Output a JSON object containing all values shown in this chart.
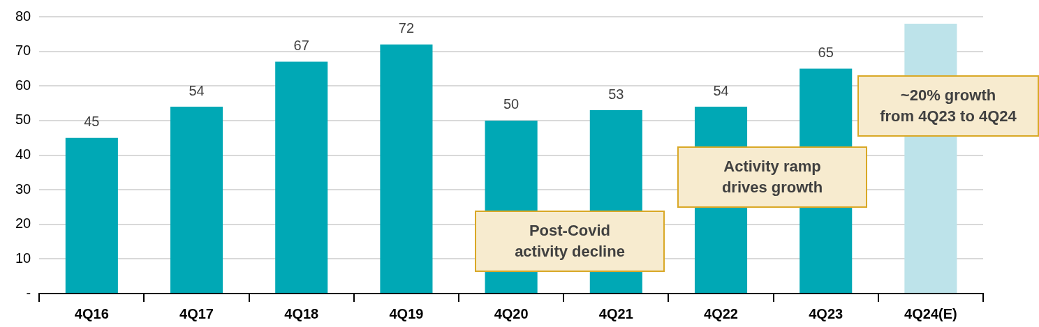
{
  "chart_data": {
    "type": "bar",
    "categories": [
      "4Q16",
      "4Q17",
      "4Q18",
      "4Q19",
      "4Q20",
      "4Q21",
      "4Q22",
      "4Q23",
      "4Q24(E)"
    ],
    "values": [
      45,
      54,
      67,
      72,
      50,
      53,
      54,
      65,
      78
    ],
    "colors": [
      "#00a8b5",
      "#00a8b5",
      "#00a8b5",
      "#00a8b5",
      "#00a8b5",
      "#00a8b5",
      "#00a8b5",
      "#00a8b5",
      "#bde3ea"
    ],
    "value_labels": [
      "45",
      "54",
      "67",
      "72",
      "50",
      "53",
      "54",
      "65",
      null
    ],
    "ylim": [
      0,
      80
    ],
    "yticks": [
      {
        "value": 0,
        "label": "-"
      },
      10,
      20,
      30,
      40,
      50,
      60,
      70,
      80
    ],
    "grid": "y",
    "legend": false,
    "annotations": [
      "Post-Covid\nactivity decline",
      "Activity ramp\ndrives growth",
      "~20% growth\nfrom 4Q23 to 4Q24"
    ]
  }
}
